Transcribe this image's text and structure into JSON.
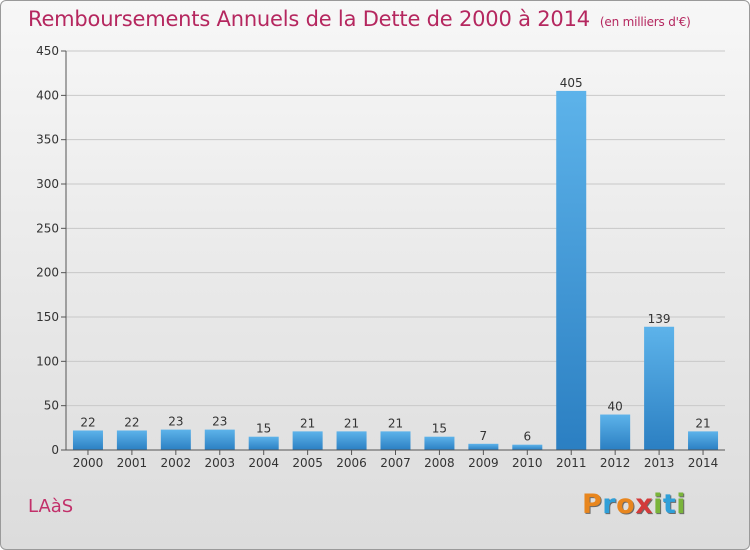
{
  "title": "Remboursements Annuels de la Dette de 2000 à 2014",
  "subtitle": "(en milliers d'€)",
  "place": "LAàS",
  "logo": {
    "text": "Proxiti",
    "letters": [
      {
        "ch": "P",
        "color": "#e8861e"
      },
      {
        "ch": "r",
        "color": "#2f9fd8"
      },
      {
        "ch": "o",
        "color": "#e8861e"
      },
      {
        "ch": "x",
        "color": "#d33b3b"
      },
      {
        "ch": "i",
        "color": "#7ab43b"
      },
      {
        "ch": "t",
        "color": "#2f9fd8"
      },
      {
        "ch": "i",
        "color": "#7ab43b"
      }
    ]
  },
  "colors": {
    "bar_top": "#5db3ea",
    "bar_bottom": "#2b7fc2",
    "title": "#b5275f",
    "grid": "#c8c8c8"
  },
  "chart_data": {
    "type": "bar",
    "title": "Remboursements Annuels de la Dette de 2000 à 2014",
    "subtitle": "(en milliers d'€)",
    "categories": [
      "2000",
      "2001",
      "2002",
      "2003",
      "2004",
      "2005",
      "2006",
      "2007",
      "2008",
      "2009",
      "2010",
      "2011",
      "2012",
      "2013",
      "2014"
    ],
    "values": [
      22,
      22,
      23,
      23,
      15,
      21,
      21,
      21,
      15,
      7,
      6,
      405,
      40,
      139,
      21
    ],
    "yticks": [
      0,
      50,
      100,
      150,
      200,
      250,
      300,
      350,
      400,
      450
    ],
    "ylim": [
      0,
      450
    ],
    "grid": true,
    "data_labels": true
  }
}
